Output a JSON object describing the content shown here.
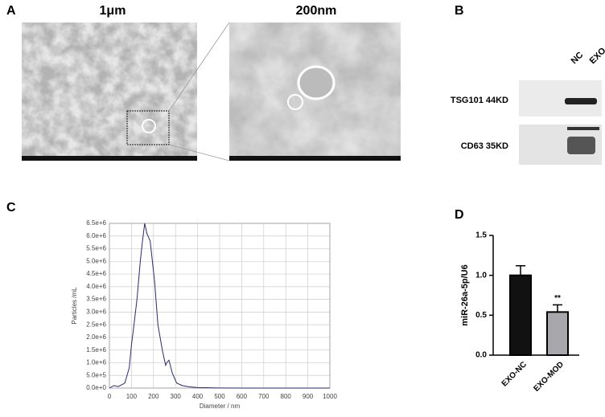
{
  "panel_labels": [
    "A",
    "B",
    "C",
    "D"
  ],
  "panel_a": {
    "left_scale": "1μm",
    "right_scale": "200nm"
  },
  "panel_b": {
    "lanes": [
      "NC",
      "EXO"
    ],
    "bands": [
      "TSG101 44KD",
      "CD63 35KD"
    ]
  },
  "chart_data": [
    {
      "type": "line",
      "xlabel": "Diameter / nm",
      "ylabel": "Particles /mL",
      "color": "#2a2a6e",
      "grid": true,
      "x": [
        0,
        20,
        40,
        60,
        70,
        90,
        100,
        110,
        125,
        140,
        150,
        160,
        170,
        185,
        195,
        205,
        220,
        240,
        255,
        260,
        270,
        285,
        305,
        330,
        360,
        400,
        450,
        500,
        600,
        700,
        800,
        900,
        1000
      ],
      "values": [
        0,
        100000,
        60000,
        150000,
        200000,
        800000,
        1700000,
        2400000,
        3500000,
        5000000,
        5800000,
        6500000,
        6100000,
        5800000,
        5000000,
        4200000,
        2500000,
        1500000,
        900000,
        1000000,
        1100000,
        600000,
        200000,
        100000,
        50000,
        20000,
        10000,
        5000,
        0,
        0,
        0,
        0,
        0
      ],
      "xlim": [
        0,
        1000
      ],
      "xticks": [
        0,
        100,
        200,
        300,
        400,
        500,
        600,
        700,
        800,
        900,
        1000
      ],
      "ylim": [
        0,
        6500000
      ],
      "yticks": [
        {
          "value": 0,
          "label": "0.0e+0"
        },
        {
          "value": 500000,
          "label": "5.0e+5"
        },
        {
          "value": 1000000,
          "label": "1.0e+6"
        },
        {
          "value": 1500000,
          "label": "1.5e+6"
        },
        {
          "value": 2000000,
          "label": "2.0e+6"
        },
        {
          "value": 2500000,
          "label": "2.5e+6"
        },
        {
          "value": 3000000,
          "label": "3.0e+6"
        },
        {
          "value": 3500000,
          "label": "3.5e+6"
        },
        {
          "value": 4000000,
          "label": "4.0e+6"
        },
        {
          "value": 4500000,
          "label": "4.5e+6"
        },
        {
          "value": 5000000,
          "label": "5.0e+6"
        },
        {
          "value": 5500000,
          "label": "5.5e+6"
        },
        {
          "value": 6000000,
          "label": "6.0e+6"
        },
        {
          "value": 6500000,
          "label": "6.5e+6"
        }
      ]
    },
    {
      "type": "bar",
      "ylabel": "miR-26a-5p/U6",
      "categories": [
        "EXO-NC",
        "EXO-MOD"
      ],
      "values": [
        1.0,
        0.54
      ],
      "errors": [
        0.12,
        0.09
      ],
      "colors": [
        "#111111",
        "#a8a8ac"
      ],
      "significance": [
        null,
        "**"
      ],
      "ylim": [
        0,
        1.5
      ],
      "yticks": [
        {
          "value": 0,
          "label": "0.0"
        },
        {
          "value": 0.5,
          "label": "0.5"
        },
        {
          "value": 1.0,
          "label": "1.0"
        },
        {
          "value": 1.5,
          "label": "1.5"
        }
      ]
    }
  ]
}
